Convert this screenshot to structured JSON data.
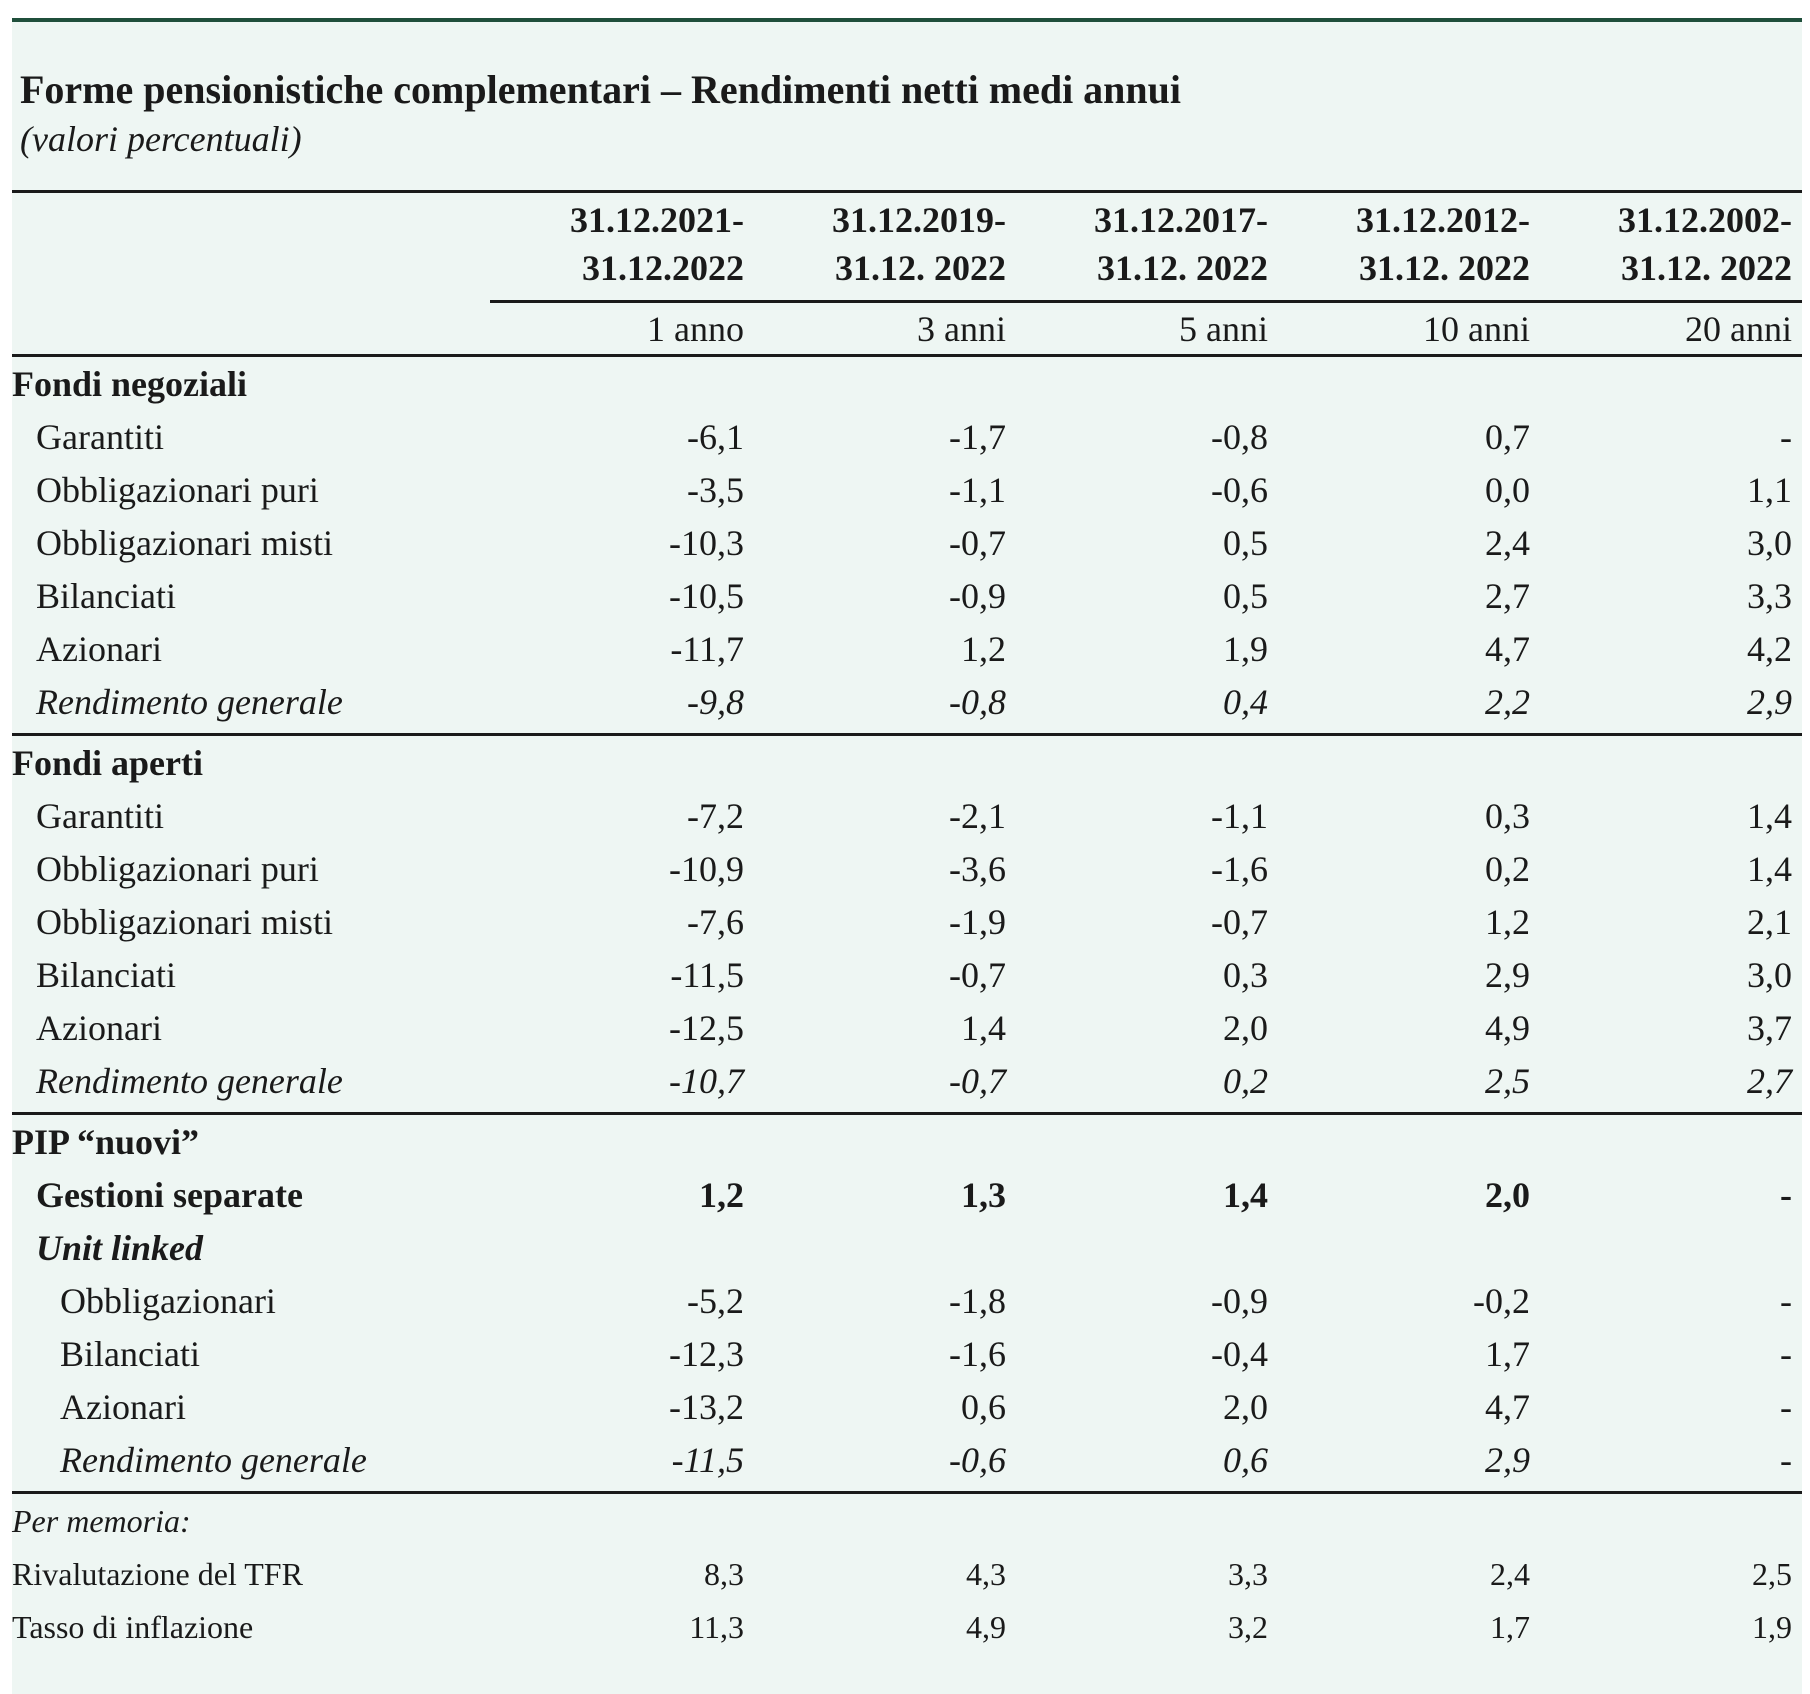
{
  "title": "Forme pensionistiche complementari – Rendimenti netti medi annui",
  "subtitle": "(valori percentuali)",
  "columns": [
    {
      "line1": "31.12.2021-",
      "line2": "31.12.2022",
      "period": "1 anno"
    },
    {
      "line1": "31.12.2019-",
      "line2": "31.12. 2022",
      "period": "3 anni"
    },
    {
      "line1": "31.12.2017-",
      "line2": "31.12. 2022",
      "period": "5 anni"
    },
    {
      "line1": "31.12.2012-",
      "line2": "31.12. 2022",
      "period": "10 anni"
    },
    {
      "line1": "31.12.2002-",
      "line2": "31.12. 2022",
      "period": "20 anni"
    }
  ],
  "rows": [
    {
      "label": "Fondi negoziali",
      "style": "section",
      "indent": 0,
      "values": []
    },
    {
      "label": "Garantiti",
      "style": "normal",
      "indent": 1,
      "values": [
        "-6,1",
        "-1,7",
        "-0,8",
        "0,7",
        "-"
      ]
    },
    {
      "label": "Obbligazionari puri",
      "style": "normal",
      "indent": 1,
      "values": [
        "-3,5",
        "-1,1",
        "-0,6",
        "0,0",
        "1,1"
      ]
    },
    {
      "label": "Obbligazionari misti",
      "style": "normal",
      "indent": 1,
      "values": [
        "-10,3",
        "-0,7",
        "0,5",
        "2,4",
        "3,0"
      ]
    },
    {
      "label": "Bilanciati",
      "style": "normal",
      "indent": 1,
      "values": [
        "-10,5",
        "-0,9",
        "0,5",
        "2,7",
        "3,3"
      ]
    },
    {
      "label": "Azionari",
      "style": "normal",
      "indent": 1,
      "values": [
        "-11,7",
        "1,2",
        "1,9",
        "4,7",
        "4,2"
      ]
    },
    {
      "label": "Rendimento generale",
      "style": "italic",
      "indent": 1,
      "values": [
        "-9,8",
        "-0,8",
        "0,4",
        "2,2",
        "2,9"
      ],
      "rule_after": true
    },
    {
      "label": "Fondi aperti",
      "style": "section",
      "indent": 0,
      "values": []
    },
    {
      "label": "Garantiti",
      "style": "normal",
      "indent": 1,
      "values": [
        "-7,2",
        "-2,1",
        "-1,1",
        "0,3",
        "1,4"
      ]
    },
    {
      "label": "Obbligazionari puri",
      "style": "normal",
      "indent": 1,
      "values": [
        "-10,9",
        "-3,6",
        "-1,6",
        "0,2",
        "1,4"
      ]
    },
    {
      "label": "Obbligazionari misti",
      "style": "normal",
      "indent": 1,
      "values": [
        "-7,6",
        "-1,9",
        "-0,7",
        "1,2",
        "2,1"
      ]
    },
    {
      "label": "Bilanciati",
      "style": "normal",
      "indent": 1,
      "values": [
        "-11,5",
        "-0,7",
        "0,3",
        "2,9",
        "3,0"
      ]
    },
    {
      "label": "Azionari",
      "style": "normal",
      "indent": 1,
      "values": [
        "-12,5",
        "1,4",
        "2,0",
        "4,9",
        "3,7"
      ]
    },
    {
      "label": "Rendimento generale",
      "style": "italic",
      "indent": 1,
      "values": [
        "-10,7",
        "-0,7",
        "0,2",
        "2,5",
        "2,7"
      ],
      "rule_after": true
    },
    {
      "label": "PIP “nuovi”",
      "style": "section",
      "indent": 0,
      "values": []
    },
    {
      "label": "Gestioni separate",
      "style": "bold",
      "indent": 1,
      "values": [
        "1,2",
        "1,3",
        "1,4",
        "2,0",
        "-"
      ]
    },
    {
      "label": "Unit linked",
      "style": "bolditalic",
      "indent": 1,
      "values": []
    },
    {
      "label": "Obbligazionari",
      "style": "normal",
      "indent": 2,
      "values": [
        "-5,2",
        "-1,8",
        "-0,9",
        "-0,2",
        "-"
      ]
    },
    {
      "label": "Bilanciati",
      "style": "normal",
      "indent": 2,
      "values": [
        "-12,3",
        "-1,6",
        "-0,4",
        "1,7",
        "-"
      ]
    },
    {
      "label": "Azionari",
      "style": "normal",
      "indent": 2,
      "values": [
        "-13,2",
        "0,6",
        "2,0",
        "4,7",
        "-"
      ]
    },
    {
      "label": "Rendimento generale",
      "style": "italic",
      "indent": 2,
      "values": [
        "-11,5",
        "-0,6",
        "0,6",
        "2,9",
        "-"
      ],
      "rule_after": true
    },
    {
      "label": "Per memoria:",
      "style": "memo-title",
      "indent": 0,
      "values": []
    },
    {
      "label": "Rivalutazione del TFR",
      "style": "memo",
      "indent": 0,
      "values": [
        "8,3",
        "4,3",
        "3,3",
        "2,4",
        "2,5"
      ]
    },
    {
      "label": "Tasso di inflazione",
      "style": "memo",
      "indent": 0,
      "values": [
        "11,3",
        "4,9",
        "3,2",
        "1,7",
        "1,9"
      ]
    }
  ]
}
